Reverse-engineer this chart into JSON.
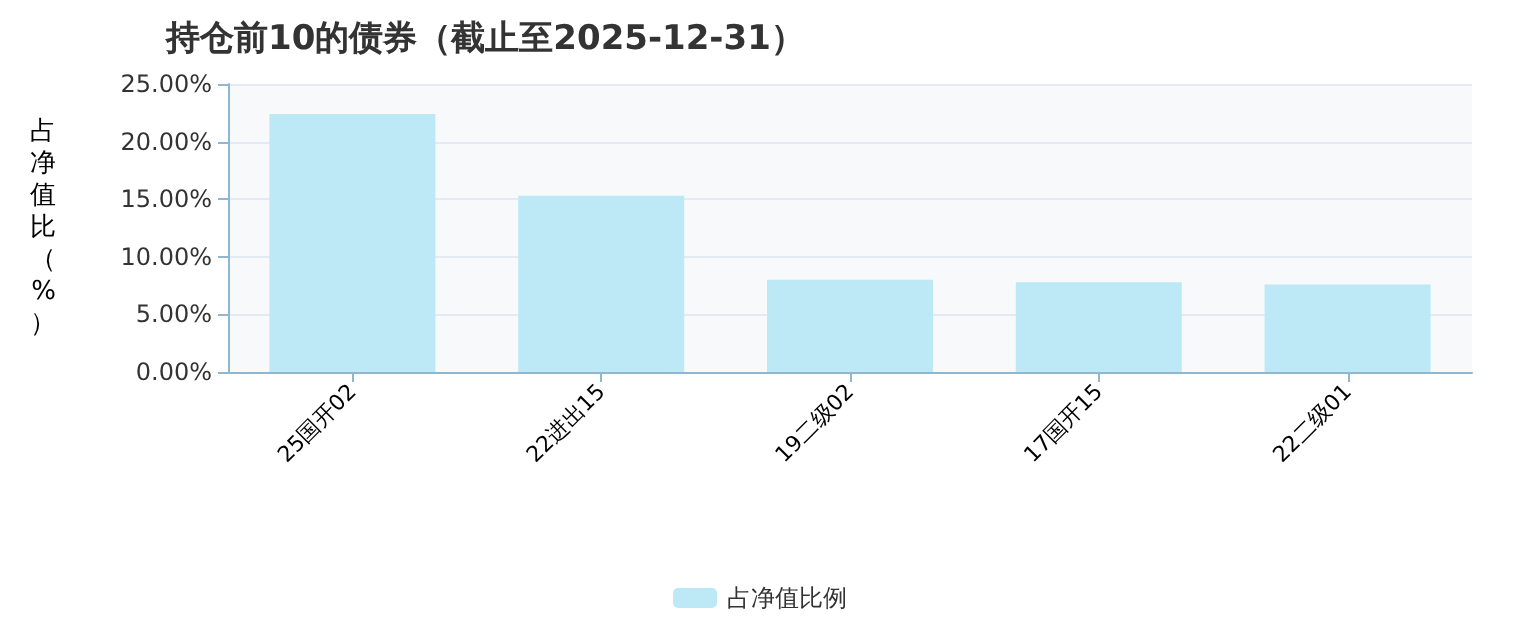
{
  "chart_data": {
    "type": "bar",
    "title": "持仓前10的债券（截止至2025-12-31）",
    "ylabel": "占净值比（%）",
    "categories": [
      "25国开02",
      "22进出15",
      "19二级02",
      "17国开15",
      "22二级01"
    ],
    "series": [
      {
        "name": "占净值比例",
        "color": "#bde9f6",
        "values": [
          22.4,
          15.3,
          8.0,
          7.8,
          7.6
        ]
      }
    ],
    "ylim": [
      0,
      25
    ],
    "yticks": [
      {
        "value": 0,
        "label": "0.00%"
      },
      {
        "value": 5,
        "label": "5.00%"
      },
      {
        "value": 10,
        "label": "10.00%"
      },
      {
        "value": 15,
        "label": "15.00%"
      },
      {
        "value": 20,
        "label": "20.00%"
      },
      {
        "value": 25,
        "label": "25.00%"
      }
    ],
    "grid": "y",
    "legend": "bottom"
  }
}
